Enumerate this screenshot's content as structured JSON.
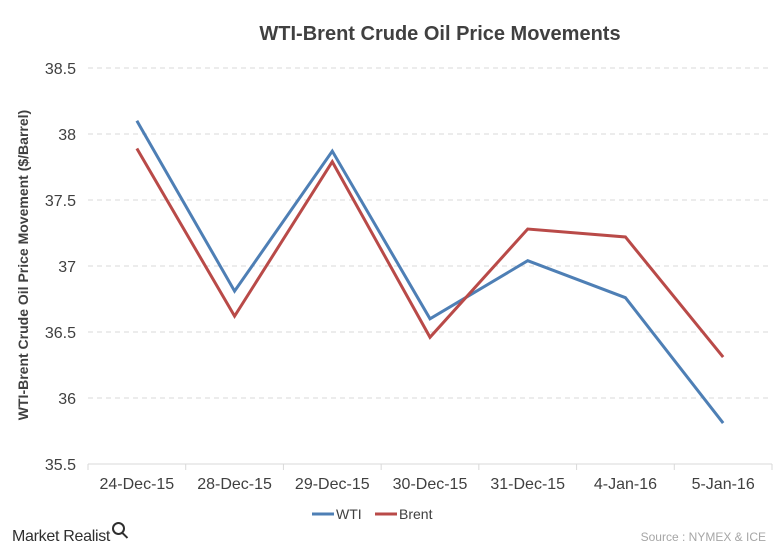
{
  "chart_data": {
    "type": "line",
    "title": "WTI-Brent Crude Oil Price Movements",
    "xlabel": "",
    "ylabel": "WTI-Brent Crude Oil Price Movement ($/Barrel)",
    "categories": [
      "24-Dec-15",
      "28-Dec-15",
      "29-Dec-15",
      "30-Dec-15",
      "31-Dec-15",
      "4-Jan-16",
      "5-Jan-16"
    ],
    "series": [
      {
        "name": "WTI",
        "color": "#4e7fb5",
        "values": [
          38.1,
          36.81,
          37.87,
          36.6,
          37.04,
          36.76,
          35.81
        ]
      },
      {
        "name": "Brent",
        "color": "#b94a48",
        "values": [
          37.89,
          36.62,
          37.79,
          36.46,
          37.28,
          37.22,
          36.31
        ]
      }
    ],
    "ylim": [
      35.5,
      38.5
    ],
    "yticks": [
      35.5,
      36,
      36.5,
      37,
      37.5,
      38,
      38.5
    ],
    "grid": true,
    "legend_position": "bottom"
  },
  "branding": {
    "logo_text": "Market Realist",
    "logo_icon": "magnifier-icon",
    "source_text": "Source : NYMEX & ICE"
  }
}
